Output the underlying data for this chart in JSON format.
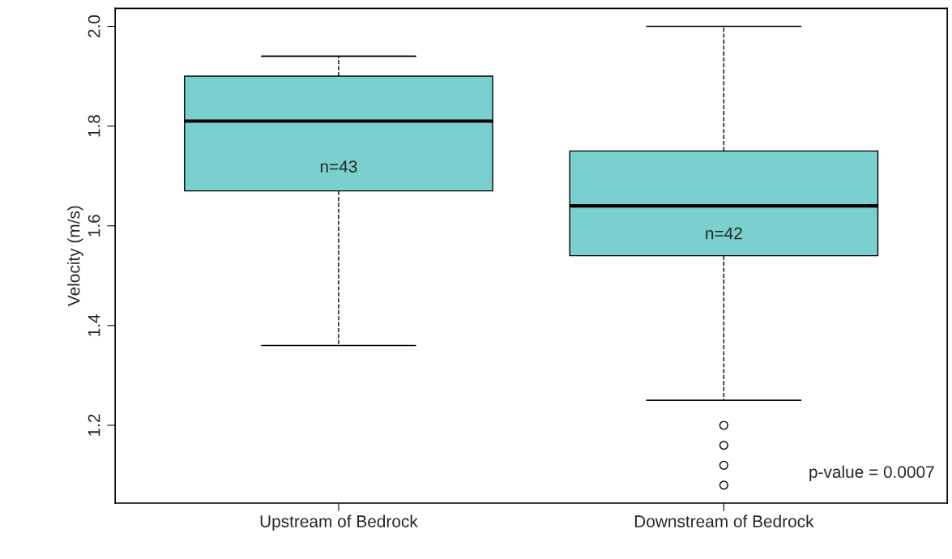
{
  "chart_data": {
    "type": "box",
    "ylabel": "Velocity (m/s)",
    "categories": [
      "Upstream of Bedrock",
      "Downstream of Bedrock"
    ],
    "boxes": [
      {
        "low": 1.36,
        "q1": 1.67,
        "median": 1.81,
        "q3": 1.9,
        "high": 1.94
      },
      {
        "low": 1.25,
        "q1": 1.54,
        "median": 1.64,
        "q3": 1.75,
        "high": 2.0,
        "outliers": [
          1.2,
          1.16,
          1.12,
          1.08
        ]
      }
    ],
    "color": "#7acfcf",
    "ylim": [
      1.044,
      2.036
    ],
    "yticks": [
      1.2,
      1.4,
      1.6,
      1.8,
      {
        "value": 2.0,
        "label": "2.0"
      }
    ],
    "grid": false,
    "marker": "circle",
    "annotations": [
      "n=43",
      "n=42",
      "p-value = 0.0007"
    ]
  }
}
